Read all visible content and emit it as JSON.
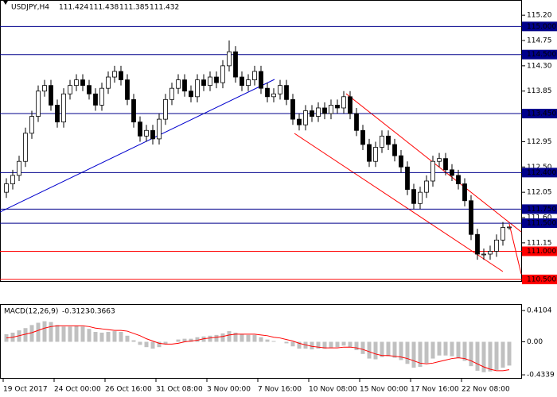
{
  "chart_data": [
    {
      "type": "candlestick",
      "title": "USDJPY,H4",
      "categories": [
        "19 Oct 2017",
        null,
        null,
        null,
        null,
        null,
        null,
        null,
        "24 Oct 00:00",
        null,
        null,
        null,
        null,
        null,
        null,
        null,
        "26 Oct 16:00",
        null,
        null,
        null,
        null,
        null,
        null,
        null,
        "31 Oct 08:00",
        null,
        null,
        null,
        null,
        null,
        null,
        null,
        "3 Nov 00:00",
        null,
        null,
        null,
        null,
        null,
        null,
        null,
        "7 Nov 16:00",
        null,
        null,
        null,
        null,
        null,
        null,
        null,
        "10 Nov 08:00",
        null,
        null,
        null,
        null,
        null,
        null,
        null,
        "15 Nov 00:00",
        null,
        null,
        null,
        null,
        null,
        null,
        null,
        "17 Nov 16:00",
        null,
        null,
        null,
        null,
        null,
        null,
        null,
        "22 Nov 08:00",
        null,
        null,
        null,
        null,
        null,
        null,
        null
      ],
      "open": [
        112.05,
        112.2,
        112.35,
        112.6,
        113.1,
        113.4,
        113.85,
        113.95,
        113.6,
        113.3,
        113.8,
        113.95,
        114.05,
        113.95,
        113.8,
        113.6,
        113.9,
        114.1,
        114.2,
        114.05,
        113.7,
        113.3,
        113.05,
        113.15,
        113.0,
        113.35,
        113.7,
        113.9,
        114.05,
        113.85,
        113.75,
        114.05,
        113.95,
        114.1,
        114.0,
        114.3,
        114.55,
        114.1,
        113.95,
        114.05,
        114.2,
        113.9,
        113.75,
        113.8,
        113.95,
        113.7,
        113.35,
        113.25,
        113.5,
        113.4,
        113.55,
        113.45,
        113.6,
        113.55,
        113.75,
        113.45,
        113.15,
        112.9,
        112.6,
        112.85,
        113.05,
        112.9,
        112.7,
        112.5,
        112.1,
        111.85,
        112.05,
        112.25,
        112.6,
        112.65,
        112.45,
        112.35,
        112.2,
        111.9,
        111.3,
        110.95,
        110.95,
        111.0,
        111.2,
        111.424
      ],
      "high": [
        112.3,
        112.45,
        112.7,
        113.2,
        113.5,
        113.95,
        114.05,
        114.05,
        113.7,
        113.9,
        114.05,
        114.15,
        114.15,
        114.05,
        113.9,
        114.0,
        114.2,
        114.3,
        114.3,
        114.15,
        113.8,
        113.4,
        113.25,
        113.25,
        113.45,
        113.8,
        114.0,
        114.15,
        114.15,
        113.95,
        114.15,
        114.15,
        114.2,
        114.2,
        114.4,
        114.75,
        114.65,
        114.2,
        114.15,
        114.3,
        114.3,
        114.0,
        113.9,
        114.05,
        114.05,
        113.8,
        113.45,
        113.6,
        113.6,
        113.65,
        113.65,
        113.7,
        113.7,
        113.85,
        113.85,
        113.55,
        113.25,
        113.0,
        112.95,
        113.15,
        113.15,
        113.0,
        112.8,
        112.6,
        112.2,
        112.15,
        112.35,
        112.7,
        112.75,
        112.75,
        112.55,
        112.45,
        112.3,
        112.0,
        111.4,
        111.05,
        111.1,
        111.3,
        111.52,
        111.438
      ],
      "low": [
        111.95,
        112.1,
        112.25,
        112.5,
        113.0,
        113.3,
        113.75,
        113.5,
        113.2,
        113.2,
        113.7,
        113.85,
        113.85,
        113.7,
        113.5,
        113.5,
        113.8,
        114.0,
        113.95,
        113.6,
        113.2,
        112.95,
        112.95,
        112.9,
        112.9,
        113.25,
        113.6,
        113.8,
        113.75,
        113.65,
        113.65,
        113.85,
        113.85,
        113.9,
        113.9,
        114.2,
        114.0,
        113.85,
        113.85,
        113.95,
        113.8,
        113.65,
        113.65,
        113.7,
        113.6,
        113.25,
        113.15,
        113.15,
        113.3,
        113.3,
        113.35,
        113.35,
        113.45,
        113.45,
        113.35,
        113.05,
        112.8,
        112.5,
        112.5,
        112.75,
        112.8,
        112.6,
        112.4,
        112.0,
        111.75,
        111.75,
        111.95,
        112.15,
        112.5,
        112.35,
        112.25,
        112.1,
        111.8,
        111.2,
        110.85,
        110.85,
        110.85,
        110.9,
        111.1,
        111.385
      ],
      "close": [
        112.2,
        112.35,
        112.6,
        113.1,
        113.4,
        113.85,
        113.95,
        113.6,
        113.3,
        113.8,
        113.95,
        114.05,
        113.95,
        113.8,
        113.6,
        113.9,
        114.1,
        114.2,
        114.05,
        113.7,
        113.3,
        113.05,
        113.15,
        113.0,
        113.35,
        113.7,
        113.9,
        114.05,
        113.85,
        113.75,
        114.05,
        113.95,
        114.1,
        114.0,
        114.3,
        114.55,
        114.1,
        113.95,
        114.05,
        114.2,
        113.9,
        113.75,
        113.8,
        113.95,
        113.7,
        113.35,
        113.25,
        113.5,
        113.4,
        113.55,
        113.45,
        113.6,
        113.55,
        113.75,
        113.45,
        113.15,
        112.9,
        112.6,
        112.85,
        113.05,
        112.9,
        112.7,
        112.5,
        112.1,
        111.85,
        112.05,
        112.25,
        112.6,
        112.65,
        112.45,
        112.35,
        112.2,
        111.9,
        111.3,
        110.95,
        110.95,
        111.0,
        111.2,
        111.424,
        111.432
      ],
      "ylim": [
        110.47,
        115.4
      ],
      "yticks": [
        {
          "value": 115.2,
          "label": "115.20"
        },
        {
          "value": 114.75,
          "label": "114.75"
        },
        {
          "value": 114.3,
          "label": "114.30"
        },
        {
          "value": 113.85,
          "label": "113.85"
        },
        {
          "value": 113.4,
          "label": "113.40"
        },
        {
          "value": 112.95,
          "label": "112.95"
        },
        {
          "value": 112.5,
          "label": "112.50"
        },
        {
          "value": 112.05,
          "label": "112.05"
        },
        {
          "value": 111.6,
          "label": "111.60"
        },
        {
          "value": 111.15,
          "label": "111.15"
        }
      ],
      "levels": [
        {
          "value": 115.0,
          "label": "115.000",
          "color": "#00008b"
        },
        {
          "value": 114.5,
          "label": "114.500",
          "color": "#00008b"
        },
        {
          "value": 113.45,
          "label": "113.450",
          "color": "#00008b"
        },
        {
          "value": 112.4,
          "label": "112.400",
          "color": "#00008b"
        },
        {
          "value": 111.75,
          "label": "111.750",
          "color": "#00008b"
        },
        {
          "value": 111.5,
          "label": "111.500",
          "color": "#00008b"
        },
        {
          "value": 111.0,
          "label": "111.000",
          "color": "#ff0000"
        },
        {
          "value": 110.5,
          "label": "110.500",
          "color": "#ff0000"
        }
      ],
      "up_color": "#ffffff",
      "down_color": "#000000",
      "wick_color": "#000000"
    },
    {
      "type": "macd",
      "title": "MACD(12,26,9)",
      "values": [
        0.1,
        0.12,
        0.15,
        0.18,
        0.22,
        0.25,
        0.27,
        0.26,
        0.22,
        0.2,
        0.2,
        0.21,
        0.2,
        0.17,
        0.13,
        0.12,
        0.13,
        0.14,
        0.13,
        0.08,
        0.02,
        -0.04,
        -0.07,
        -0.09,
        -0.07,
        -0.03,
        0.0,
        0.03,
        0.04,
        0.04,
        0.06,
        0.07,
        0.08,
        0.09,
        0.11,
        0.14,
        0.12,
        0.1,
        0.09,
        0.09,
        0.06,
        0.03,
        0.01,
        0.0,
        -0.02,
        -0.06,
        -0.09,
        -0.09,
        -0.1,
        -0.09,
        -0.09,
        -0.08,
        -0.07,
        -0.05,
        -0.07,
        -0.11,
        -0.16,
        -0.22,
        -0.23,
        -0.2,
        -0.19,
        -0.21,
        -0.24,
        -0.29,
        -0.34,
        -0.33,
        -0.28,
        -0.22,
        -0.18,
        -0.18,
        -0.19,
        -0.21,
        -0.25,
        -0.32,
        -0.38,
        -0.4,
        -0.39,
        -0.37,
        -0.34,
        -0.3123
      ],
      "signal": [
        0.05,
        0.06,
        0.08,
        0.1,
        0.12,
        0.15,
        0.18,
        0.2,
        0.21,
        0.21,
        0.21,
        0.21,
        0.21,
        0.2,
        0.18,
        0.17,
        0.16,
        0.15,
        0.15,
        0.14,
        0.11,
        0.08,
        0.04,
        0.01,
        -0.02,
        -0.03,
        -0.03,
        -0.02,
        0.0,
        0.01,
        0.02,
        0.04,
        0.05,
        0.06,
        0.07,
        0.09,
        0.1,
        0.1,
        0.1,
        0.1,
        0.09,
        0.08,
        0.06,
        0.05,
        0.03,
        0.01,
        -0.02,
        -0.04,
        -0.06,
        -0.07,
        -0.08,
        -0.08,
        -0.08,
        -0.07,
        -0.07,
        -0.08,
        -0.1,
        -0.13,
        -0.16,
        -0.18,
        -0.18,
        -0.19,
        -0.2,
        -0.22,
        -0.25,
        -0.28,
        -0.29,
        -0.28,
        -0.26,
        -0.24,
        -0.22,
        -0.21,
        -0.22,
        -0.25,
        -0.29,
        -0.33,
        -0.36,
        -0.38,
        -0.38,
        -0.3663
      ],
      "color": "#c0c0c0",
      "signal_color": "#ff0000",
      "ylim": [
        -0.475,
        0.485
      ],
      "yticks": [
        0.4104,
        {
          "value": 0,
          "label": "0.00"
        },
        -0.4339
      ]
    }
  ]
}
